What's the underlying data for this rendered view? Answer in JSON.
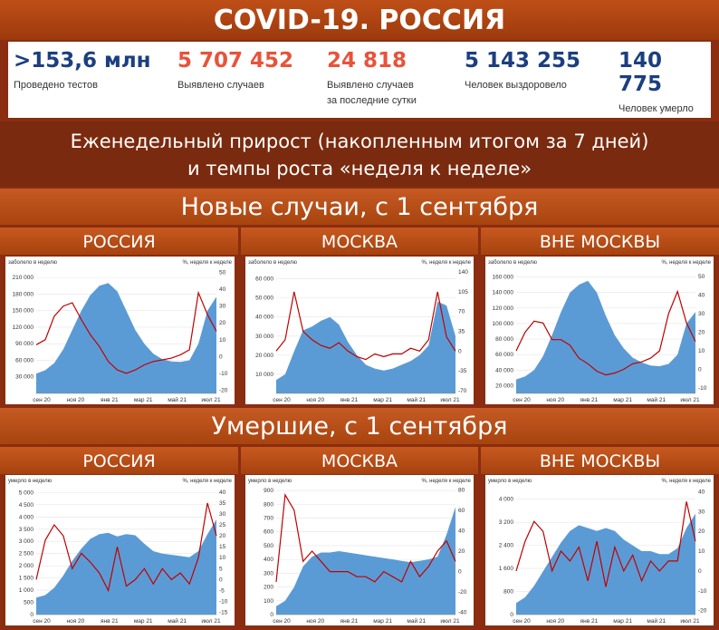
{
  "header": {
    "title": "COVID-19. РОССИЯ"
  },
  "stats": [
    {
      "value": ">153,6 млн",
      "label": "Проведено тестов",
      "label2": "",
      "color": "#1b3f7f"
    },
    {
      "value": "5 707 452",
      "label": "Выявлено случаев",
      "label2": "",
      "color": "#e8533a"
    },
    {
      "value": "24 818",
      "label": "Выявлено случаев",
      "label2": "за последние сутки",
      "color": "#e8533a"
    },
    {
      "value": "5 143 255",
      "label": "Человек выздоровело",
      "label2": "",
      "color": "#1b3f7f"
    },
    {
      "value": "140 775",
      "label": "Человек умерло",
      "label2": "",
      "color": "#1b3f7f"
    }
  ],
  "subtitle": {
    "line1": "Еженедельный прирост (накопленным итогом за 7 дней)",
    "line2": "и темпы роста «неделя к неделе»"
  },
  "sections": {
    "cases": "Новые случаи, с 1 сентября",
    "deaths": "Умершие, с 1 сентября"
  },
  "panels": {
    "russia": "РОССИЯ",
    "moscow": "МОСКВА",
    "outside": "ВНЕ МОСКВЫ"
  },
  "colors": {
    "area": "#5b9bd5",
    "line": "#c00000"
  },
  "chart_data": [
    {
      "type": "area",
      "title": "РОССИЯ",
      "ylabel_left": "заболело в неделю",
      "ylabel_right": "%, неделя к неделе",
      "x_ticks": [
        "сен 20",
        "ноя 20",
        "янв 21",
        "мар 21",
        "май 21",
        "июл 21"
      ],
      "left_ticks": [
        30000,
        60000,
        90000,
        120000,
        150000,
        180000,
        210000
      ],
      "left_tick_labels": [
        "30 000",
        "60 000",
        "90 000",
        "120 000",
        "150 000",
        "180 000",
        "210 000"
      ],
      "ylim_left": [
        0,
        225000
      ],
      "right_ticks": [
        -20,
        -10,
        0,
        10,
        20,
        30,
        40,
        50
      ],
      "right_tick_labels": [
        "-20",
        "-10",
        "0",
        "10",
        "20",
        "30",
        "40",
        "50"
      ],
      "ylim_right": [
        -22,
        52
      ],
      "area_values": [
        36000,
        42000,
        55000,
        80000,
        115000,
        150000,
        178000,
        195000,
        200000,
        185000,
        150000,
        115000,
        90000,
        72000,
        62000,
        58000,
        57000,
        60000,
        90000,
        150000,
        175000
      ],
      "line_values": [
        7,
        10,
        24,
        30,
        32,
        22,
        13,
        6,
        -3,
        -8,
        -10,
        -8,
        -5,
        -3,
        -2,
        -1,
        1,
        4,
        38,
        25,
        15
      ]
    },
    {
      "type": "area",
      "title": "МОСКВА",
      "ylabel_left": "заболело в неделю",
      "ylabel_right": "%, неделя к неделе",
      "x_ticks": [
        "сен 20",
        "ноя 20",
        "янв 21",
        "мар 21",
        "май 21",
        "июл 21"
      ],
      "left_ticks": [
        10000,
        20000,
        30000,
        40000,
        50000,
        60000
      ],
      "left_tick_labels": [
        "10 000",
        "20 000",
        "30 000",
        "40 000",
        "50 000",
        "60 000"
      ],
      "ylim_left": [
        0,
        65000
      ],
      "right_ticks": [
        -70,
        -35,
        0,
        35,
        70,
        105,
        140
      ],
      "right_tick_labels": [
        "-70",
        "-35",
        "0",
        "35",
        "70",
        "105",
        "140"
      ],
      "ylim_right": [
        -75,
        145
      ],
      "area_values": [
        7000,
        10000,
        22000,
        33000,
        35000,
        38000,
        40000,
        36000,
        27000,
        20000,
        15000,
        13000,
        12000,
        13000,
        15000,
        17000,
        20000,
        25000,
        48000,
        46000,
        30000
      ],
      "line_values": [
        0,
        20,
        105,
        35,
        20,
        10,
        5,
        15,
        0,
        -10,
        -15,
        -5,
        -10,
        -5,
        -5,
        5,
        0,
        20,
        105,
        25,
        0
      ]
    },
    {
      "type": "area",
      "title": "ВНЕ МОСКВЫ",
      "ylabel_left": "заболело в неделю",
      "ylabel_right": "%, неделя к неделе",
      "x_ticks": [
        "сен 20",
        "ноя 20",
        "янв 21",
        "мар 21",
        "май 21",
        "июл 21"
      ],
      "left_ticks": [
        20000,
        40000,
        60000,
        80000,
        100000,
        120000,
        140000,
        160000
      ],
      "left_tick_labels": [
        "20 000",
        "40 000",
        "60 000",
        "80 000",
        "100 000",
        "120 000",
        "140 000",
        "160 000"
      ],
      "ylim_left": [
        10000,
        170000
      ],
      "right_ticks": [
        -10,
        0,
        10,
        20,
        30,
        40,
        50
      ],
      "right_tick_labels": [
        "-10",
        "0",
        "10",
        "20",
        "30",
        "40",
        "50"
      ],
      "ylim_right": [
        -13,
        54
      ],
      "area_values": [
        28000,
        32000,
        40000,
        58000,
        85000,
        115000,
        140000,
        150000,
        155000,
        140000,
        110000,
        85000,
        68000,
        56000,
        50000,
        46000,
        45000,
        48000,
        60000,
        100000,
        115000
      ],
      "line_values": [
        10,
        20,
        26,
        25,
        16,
        16,
        13,
        6,
        3,
        -1,
        -3,
        -2,
        0,
        3,
        4,
        6,
        10,
        30,
        42,
        25,
        15
      ]
    },
    {
      "type": "area",
      "title": "РОССИЯ",
      "ylabel_left": "умерло в неделю",
      "ylabel_right": "%, неделя к неделе",
      "x_ticks": [
        "сен 20",
        "ноя 20",
        "янв 21",
        "мар 21",
        "май 21",
        "июл 21"
      ],
      "left_ticks": [
        0,
        500,
        1000,
        1500,
        2000,
        2500,
        3000,
        3500,
        4000,
        4500,
        5000
      ],
      "left_tick_labels": [
        "0",
        "500",
        "1 000",
        "1 500",
        "2 000",
        "2 500",
        "3 000",
        "3 500",
        "4 000",
        "4 500",
        "5 000"
      ],
      "ylim_left": [
        0,
        5200
      ],
      "right_ticks": [
        -15,
        -10,
        -5,
        0,
        5,
        10,
        15,
        20,
        25,
        30,
        35,
        40
      ],
      "right_tick_labels": [
        "-15",
        "-10",
        "-5",
        "0",
        "5",
        "10",
        "15",
        "20",
        "25",
        "30",
        "35",
        "40"
      ],
      "ylim_right": [
        -16,
        42
      ],
      "area_values": [
        700,
        800,
        1100,
        1600,
        2200,
        2700,
        3100,
        3300,
        3350,
        3200,
        3300,
        3250,
        2900,
        2600,
        2500,
        2450,
        2400,
        2350,
        2600,
        3300,
        3900
      ],
      "line_values": [
        0,
        18,
        25,
        20,
        5,
        12,
        8,
        3,
        -5,
        15,
        -3,
        0,
        5,
        -2,
        5,
        0,
        3,
        -2,
        10,
        35,
        20
      ]
    },
    {
      "type": "area",
      "title": "МОСКВА",
      "ylabel_left": "умерло в неделю",
      "ylabel_right": "%, неделя к неделе",
      "x_ticks": [
        "сен 20",
        "ноя 20",
        "янв 21",
        "мар 21",
        "май 21",
        "июл 21"
      ],
      "left_ticks": [
        0,
        100,
        200,
        300,
        400,
        500,
        600,
        700,
        800,
        900
      ],
      "left_tick_labels": [
        "0",
        "100",
        "200",
        "300",
        "400",
        "500",
        "600",
        "700",
        "800",
        "900"
      ],
      "ylim_left": [
        0,
        920
      ],
      "right_ticks": [
        -40,
        -20,
        0,
        20,
        40,
        60,
        80
      ],
      "right_tick_labels": [
        "-40",
        "-20",
        "0",
        "20",
        "40",
        "60",
        "80"
      ],
      "ylim_right": [
        -42,
        82
      ],
      "area_values": [
        60,
        100,
        200,
        350,
        420,
        450,
        450,
        460,
        450,
        440,
        430,
        420,
        410,
        400,
        390,
        380,
        390,
        400,
        420,
        580,
        780
      ],
      "line_values": [
        -10,
        75,
        60,
        10,
        20,
        10,
        0,
        0,
        0,
        -5,
        -5,
        -10,
        0,
        -5,
        -10,
        10,
        -5,
        5,
        20,
        30,
        10
      ]
    },
    {
      "type": "area",
      "title": "ВНЕ МОСКВЫ",
      "ylabel_left": "умерло в неделю",
      "ylabel_right": "%, неделя к неделе",
      "x_ticks": [
        "сен 20",
        "ноя 20",
        "янв 21",
        "мар 21",
        "май 21",
        "июл 21"
      ],
      "left_ticks": [
        0,
        800,
        1600,
        2400,
        3200,
        4000
      ],
      "left_tick_labels": [
        "0",
        "800",
        "1 600",
        "2 400",
        "3 200",
        "4 000"
      ],
      "ylim_left": [
        0,
        4400
      ],
      "right_ticks": [
        -20,
        -10,
        0,
        10,
        20,
        30,
        40
      ],
      "right_tick_labels": [
        "-20",
        "-10",
        "0",
        "10",
        "20",
        "30",
        "40"
      ],
      "ylim_right": [
        -22,
        42
      ],
      "area_values": [
        400,
        600,
        1000,
        1500,
        2000,
        2500,
        2900,
        3100,
        3000,
        2900,
        3000,
        2900,
        2600,
        2400,
        2200,
        2200,
        2100,
        2100,
        2300,
        3000,
        3500
      ],
      "line_values": [
        0,
        15,
        25,
        20,
        0,
        10,
        5,
        12,
        -5,
        15,
        -8,
        12,
        0,
        8,
        -5,
        5,
        0,
        5,
        5,
        35,
        15
      ]
    }
  ]
}
